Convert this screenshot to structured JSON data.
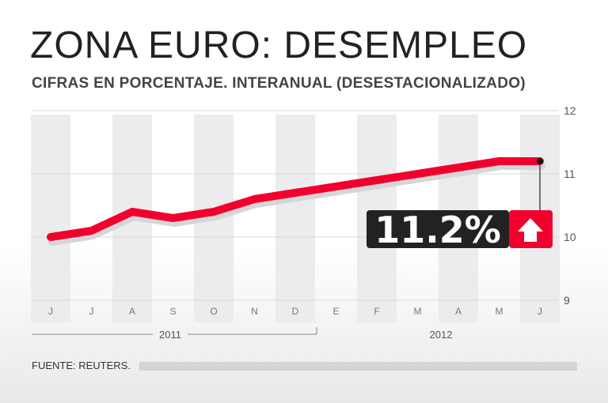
{
  "title": "ZONA EURO: DESEMPLEO",
  "subtitle": "CIFRAS EN PORCENTAJE. INTERANUAL (DESESTACIONALIZADO)",
  "source": "FUENTE: REUTERS.",
  "colors": {
    "line": "#f2002d",
    "badge_dark": "#222222",
    "badge_red": "#f2002d",
    "stripe": "#ececee"
  },
  "chart_data": {
    "type": "line",
    "title": "ZONA EURO: DESEMPLEO",
    "categories": [
      "J",
      "J",
      "A",
      "S",
      "O",
      "N",
      "D",
      "E",
      "F",
      "M",
      "A",
      "M",
      "J"
    ],
    "years": [
      "2011",
      "2012"
    ],
    "series": [
      {
        "name": "Desempleo (%)",
        "values": [
          10.0,
          10.1,
          10.4,
          10.3,
          10.4,
          10.6,
          10.7,
          10.8,
          10.9,
          11.0,
          11.1,
          11.2,
          11.2
        ]
      }
    ],
    "ylim": [
      9,
      12
    ],
    "yticks": [
      "9",
      "10",
      "11",
      "12"
    ],
    "grid": true,
    "annotation": {
      "label": "11.2%",
      "icon": "arrow-up-icon"
    }
  }
}
